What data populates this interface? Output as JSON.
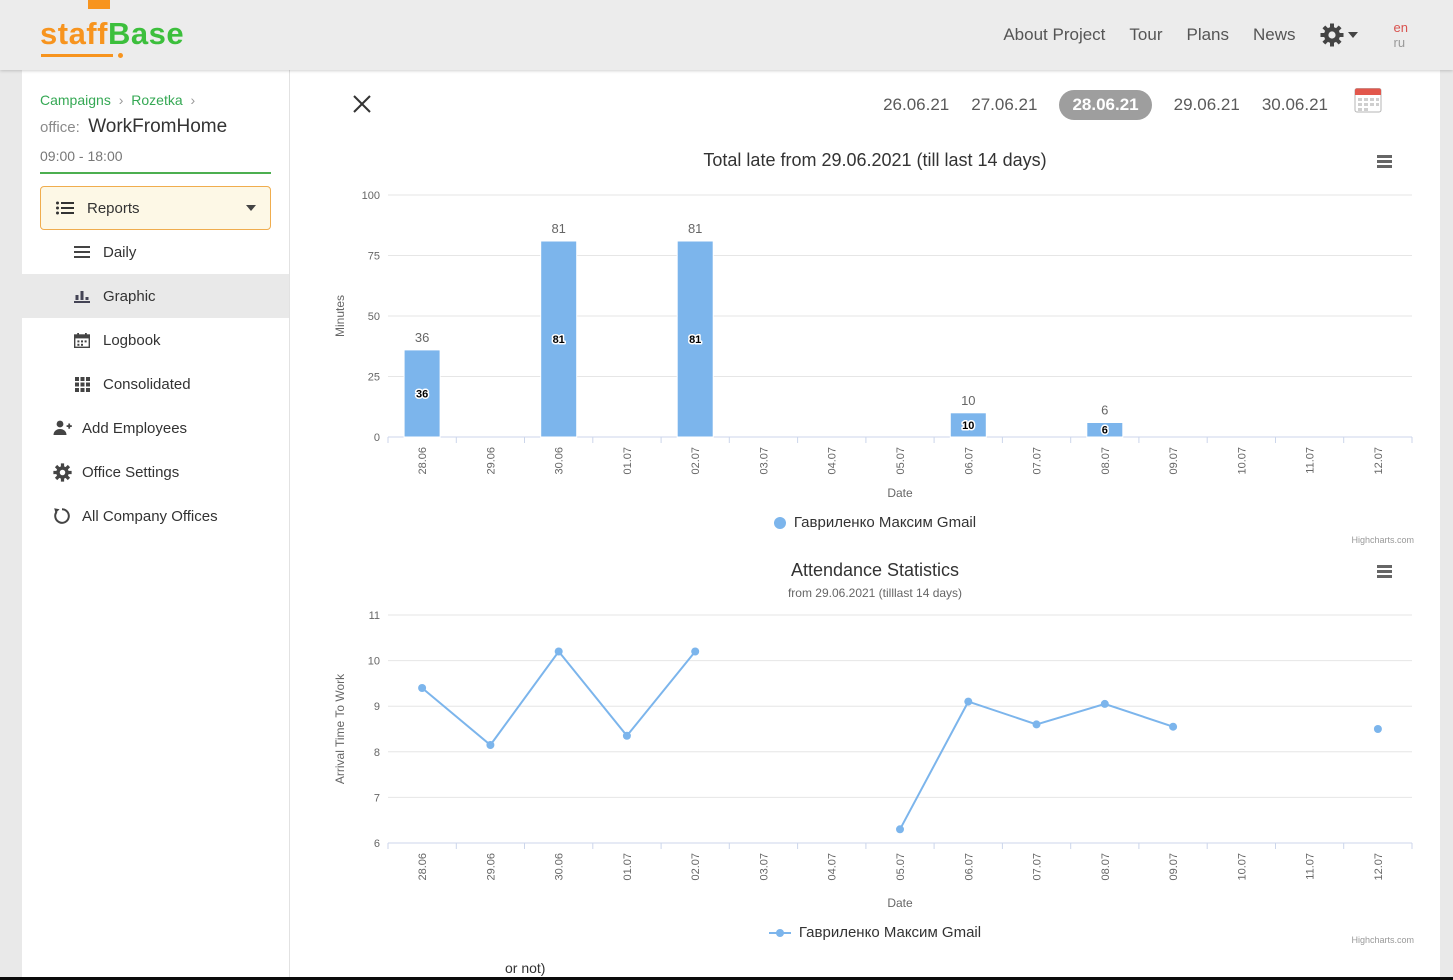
{
  "header": {
    "logo_part1": "staff",
    "logo_part2": "Base",
    "nav": [
      "About Project",
      "Tour",
      "Plans",
      "News"
    ],
    "lang_primary": "en",
    "lang_secondary": "ru"
  },
  "sidebar": {
    "breadcrumb_1": "Campaigns",
    "breadcrumb_2": "Rozetka",
    "separator": "›",
    "office_label": "office:",
    "office_name": "WorkFromHome",
    "work_hours": "09:00 - 18:00",
    "reports_label": "Reports",
    "menu": [
      {
        "label": "Daily"
      },
      {
        "label": "Graphic"
      },
      {
        "label": "Logbook"
      },
      {
        "label": "Consolidated"
      }
    ],
    "links": [
      {
        "label": "Add Employees"
      },
      {
        "label": "Office Settings"
      },
      {
        "label": "All Company Offices"
      }
    ]
  },
  "toolbar": {
    "dates": [
      "26.06.21",
      "27.06.21",
      "28.06.21",
      "29.06.21",
      "30.06.21"
    ],
    "selected_date": "28.06.21"
  },
  "colors": {
    "logo_orange": "#f7941e",
    "logo_green": "#3cbf3c",
    "accent_green": "#4caf50",
    "series_blue": "#7cb5ec",
    "selected_pill": "#9e9e9e"
  },
  "chart_data": [
    {
      "type": "bar",
      "title": "Total late from 29.06.2021 (till last 14 days)",
      "xlabel": "Date",
      "ylabel": "Minutes",
      "ylim": [
        0,
        100
      ],
      "yticks": [
        0,
        25,
        50,
        75,
        100
      ],
      "grid": true,
      "legend_position": "bottom",
      "categories": [
        "28.06",
        "29.06",
        "30.06",
        "01.07",
        "02.07",
        "03.07",
        "04.07",
        "05.07",
        "06.07",
        "07.07",
        "08.07",
        "09.07",
        "10.07",
        "11.07",
        "12.07"
      ],
      "series": [
        {
          "name": "Гавриленко Максим Gmail",
          "color": "#7cb5ec",
          "values": [
            36,
            null,
            81,
            null,
            81,
            null,
            null,
            null,
            10,
            null,
            6,
            null,
            null,
            null,
            null
          ]
        }
      ]
    },
    {
      "type": "line",
      "title": "Attendance Statistics",
      "subtitle": "from 29.06.2021 (tilllast 14 days)",
      "xlabel": "Date",
      "ylabel": "Arrival Time To Work",
      "ylim": [
        6,
        11
      ],
      "yticks": [
        6,
        7,
        8,
        9,
        10,
        11
      ],
      "grid": true,
      "legend_position": "bottom",
      "categories": [
        "28.06",
        "29.06",
        "30.06",
        "01.07",
        "02.07",
        "03.07",
        "04.07",
        "05.07",
        "06.07",
        "07.07",
        "08.07",
        "09.07",
        "10.07",
        "11.07",
        "12.07"
      ],
      "series": [
        {
          "name": "Гавриленко Максим Gmail",
          "color": "#7cb5ec",
          "values": [
            9.4,
            8.15,
            10.2,
            8.35,
            10.2,
            null,
            null,
            6.3,
            9.1,
            8.6,
            9.05,
            8.55,
            null,
            null,
            8.5
          ]
        }
      ]
    }
  ],
  "credits": "Highcharts.com",
  "footer_note": "or not)"
}
